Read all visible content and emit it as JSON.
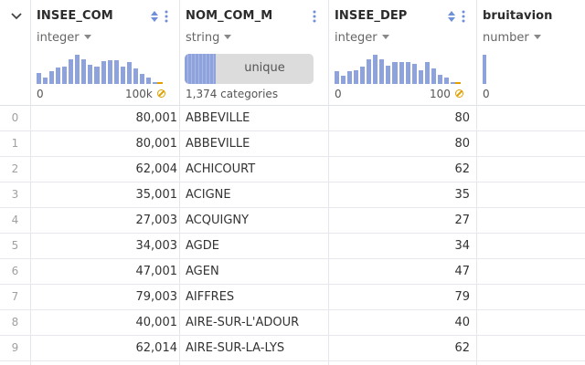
{
  "columns": [
    {
      "name": "INSEE_COM",
      "type": "integer",
      "axis_min": "0",
      "axis_max": "100k",
      "histogram": [
        0.36,
        0.22,
        0.42,
        0.52,
        0.55,
        0.8,
        0.95,
        0.8,
        0.62,
        0.55,
        0.73,
        0.75,
        0.75,
        0.55,
        0.7,
        0.5,
        0.32,
        0.22,
        0.05
      ]
    },
    {
      "name": "NOM_COM_M",
      "type": "string",
      "unique_label": "unique",
      "unique_fraction": 0.24,
      "categories_text": "1,374 categories"
    },
    {
      "name": "INSEE_DEP",
      "type": "integer",
      "axis_min": "0",
      "axis_max": "100",
      "histogram": [
        0.4,
        0.25,
        0.42,
        0.45,
        0.55,
        0.8,
        0.95,
        0.8,
        0.6,
        0.7,
        0.7,
        0.72,
        0.65,
        0.45,
        0.7,
        0.5,
        0.3,
        0.22,
        0.05
      ]
    },
    {
      "name": "bruitavion",
      "type": "number",
      "axis_min": "0",
      "histogram": [
        0.95
      ]
    }
  ],
  "rows": [
    {
      "index": "0",
      "insee_com": "80,001",
      "nom_com_m": "ABBEVILLE",
      "insee_dep": "80"
    },
    {
      "index": "1",
      "insee_com": "80,001",
      "nom_com_m": "ABBEVILLE",
      "insee_dep": "80"
    },
    {
      "index": "2",
      "insee_com": "62,004",
      "nom_com_m": "ACHICOURT",
      "insee_dep": "62"
    },
    {
      "index": "3",
      "insee_com": "35,001",
      "nom_com_m": "ACIGNE",
      "insee_dep": "35"
    },
    {
      "index": "4",
      "insee_com": "27,003",
      "nom_com_m": "ACQUIGNY",
      "insee_dep": "27"
    },
    {
      "index": "5",
      "insee_com": "34,003",
      "nom_com_m": "AGDE",
      "insee_dep": "34"
    },
    {
      "index": "6",
      "insee_com": "47,001",
      "nom_com_m": "AGEN",
      "insee_dep": "47"
    },
    {
      "index": "7",
      "insee_com": "79,003",
      "nom_com_m": "AIFFRES",
      "insee_dep": "79"
    },
    {
      "index": "8",
      "insee_com": "40,001",
      "nom_com_m": "AIRE-SUR-L'ADOUR",
      "insee_dep": "40"
    },
    {
      "index": "9",
      "insee_com": "62,014",
      "nom_com_m": "AIRE-SUR-LA-LYS",
      "insee_dep": "62"
    }
  ],
  "colors": {
    "bar": "#8ea3dc",
    "null_marker": "#e0a000",
    "sort_icon": "#6f8fd6"
  }
}
